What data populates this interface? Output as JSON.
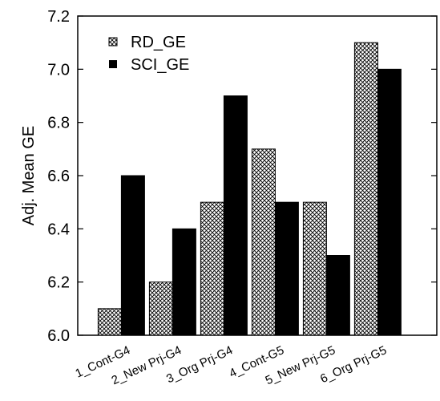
{
  "chart_data": {
    "type": "bar",
    "categories": [
      "1_Cont-G4",
      "2_New Prj-G4",
      "3_Org Prj-G4",
      "4_Cont-G5",
      "5_New Prj-G5",
      "6_Org Prj-G5"
    ],
    "series": [
      {
        "name": "RD_GE",
        "values": [
          6.1,
          6.2,
          6.5,
          6.7,
          6.5,
          7.1
        ],
        "pattern": "crosshatch"
      },
      {
        "name": "SCI_GE",
        "values": [
          6.6,
          6.4,
          6.9,
          6.5,
          6.3,
          7.0
        ],
        "color": "#000000"
      }
    ],
    "ylabel": "Adj. Mean GE",
    "xlabel": "",
    "ylim": [
      6.0,
      7.2
    ],
    "yticks": [
      "6.0",
      "6.2",
      "6.4",
      "6.6",
      "6.8",
      "7.0",
      "7.2"
    ],
    "grid": false,
    "legend_position": "top-left"
  }
}
